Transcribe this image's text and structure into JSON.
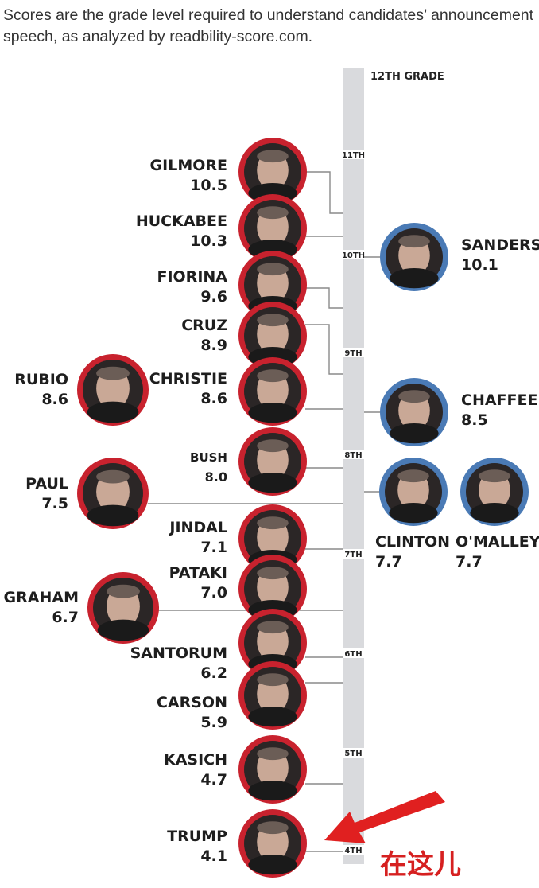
{
  "caption": "Scores are the grade level required to understand candidates’ announcement speech, as analyzed by readbility-score.com.",
  "annotation": {
    "text": "在这儿",
    "color": "#e02020",
    "points_to": "TRUMP"
  },
  "colors": {
    "republican": "#c8222e",
    "democrat": "#4a7ab5",
    "scale_bar": "#d9dadd",
    "leader": "#8a8a8a"
  },
  "chart_data": {
    "type": "dot-scale",
    "top_label": "12TH GRADE",
    "scale_ticks": [
      "11TH",
      "10TH",
      "9TH",
      "8TH",
      "7TH",
      "6TH",
      "5TH",
      "4TH"
    ],
    "tick_values": [
      11,
      10,
      9,
      8,
      7,
      6,
      5,
      4
    ],
    "ylim": [
      4,
      12
    ],
    "series": [
      {
        "party": "republican",
        "points": [
          {
            "name": "GILMORE",
            "score": "10.5",
            "value": 10.5
          },
          {
            "name": "HUCKABEE",
            "score": "10.3",
            "value": 10.3
          },
          {
            "name": "FIORINA",
            "score": "9.6",
            "value": 9.6
          },
          {
            "name": "CRUZ",
            "score": "8.9",
            "value": 8.9
          },
          {
            "name": "CHRISTIE",
            "score": "8.6",
            "value": 8.6
          },
          {
            "name": "RUBIO",
            "score": "8.6",
            "value": 8.6
          },
          {
            "name": "BUSH",
            "score": "8.0",
            "value": 8.0
          },
          {
            "name": "PAUL",
            "score": "7.5",
            "value": 7.5
          },
          {
            "name": "JINDAL",
            "score": "7.1",
            "value": 7.1
          },
          {
            "name": "PATAKI",
            "score": "7.0",
            "value": 7.0
          },
          {
            "name": "GRAHAM",
            "score": "6.7",
            "value": 6.7
          },
          {
            "name": "SANTORUM",
            "score": "6.2",
            "value": 6.2
          },
          {
            "name": "CARSON",
            "score": "5.9",
            "value": 5.9
          },
          {
            "name": "KASICH",
            "score": "4.7",
            "value": 4.7
          },
          {
            "name": "TRUMP",
            "score": "4.1",
            "value": 4.1
          }
        ]
      },
      {
        "party": "democrat",
        "points": [
          {
            "name": "SANDERS",
            "score": "10.1",
            "value": 10.1
          },
          {
            "name": "CHAFFEE",
            "score": "8.5",
            "value": 8.5
          },
          {
            "name": "CLINTON",
            "score": "7.7",
            "value": 7.7
          },
          {
            "name": "O'MALLEY",
            "score": "7.7",
            "value": 7.7
          }
        ]
      }
    ]
  }
}
